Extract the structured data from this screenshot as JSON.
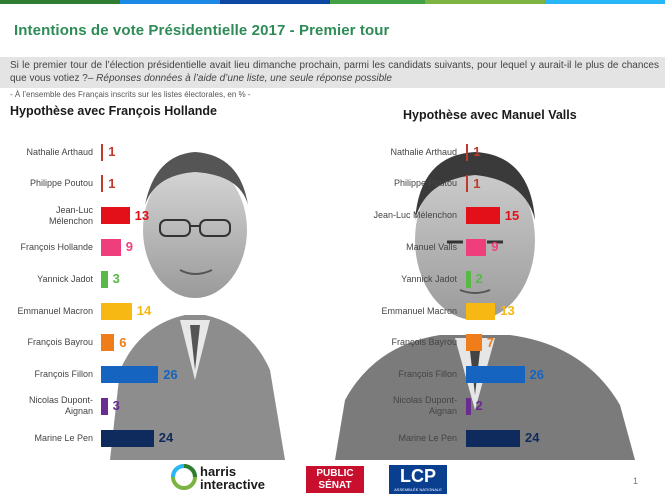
{
  "title": "Intentions de vote Présidentielle 2017 - Premier tour",
  "question": {
    "text": "Si le premier tour de l’élection présidentielle avait lieu dimanche prochain, parmi les candidats suivants, pour lequel y aurait-il le plus de chances que vous votiez ?–",
    "italic": "Réponses données à l’aide d’une liste, une seule réponse possible"
  },
  "scope": "- À l’ensemble des Français inscrits sur les listes électorales, en % -",
  "colors": {
    "arthaud": "#c0392b",
    "poutou": "#c0392b",
    "melenchon": "#e3101a",
    "hollande": "#ee3f7c",
    "valls": "#ee3f7c",
    "jadot": "#58b947",
    "macron": "#f7b813",
    "bayrou": "#ef7d1a",
    "fillon": "#1565c0",
    "dupont": "#6a2c91",
    "lepen": "#0f2a5c"
  },
  "chart_data": [
    {
      "type": "bar",
      "title": "Hypothèse avec François Hollande",
      "categories": [
        "Nathalie Arthaud",
        "Philippe Poutou",
        "Jean-Luc Mélenchon",
        "François Hollande",
        "Yannick Jadot",
        "Emmanuel Macron",
        "François Bayrou",
        "François Fillon",
        "Nicolas Dupont-Aignan",
        "Marine Le Pen"
      ],
      "values": [
        1,
        1,
        13,
        9,
        3,
        14,
        6,
        26,
        3,
        24
      ],
      "labels": [
        "Nathalie Arthaud",
        "Philippe Poutou",
        "Jean-Luc\nMélenchon",
        "François Hollande",
        "Yannick Jadot",
        "Emmanuel Macron",
        "François Bayrou",
        "François Fillon",
        "Nicolas Dupont-\nAignan",
        "Marine Le Pen"
      ],
      "keys": [
        "arthaud",
        "poutou",
        "melenchon",
        "hollande",
        "jadot",
        "macron",
        "bayrou",
        "fillon",
        "dupont",
        "lepen"
      ],
      "orientation": "horizontal"
    },
    {
      "type": "bar",
      "title": "Hypothèse avec Manuel Valls",
      "categories": [
        "Nathalie Arthaud",
        "Philippe Poutou",
        "Jean-Luc Mélenchon",
        "Manuel Valls",
        "Yannick Jadot",
        "Emmanuel Macron",
        "François Bayrou",
        "François Fillon",
        "Nicolas Dupont-Aignan",
        "Marine Le Pen"
      ],
      "values": [
        1,
        1,
        15,
        9,
        2,
        13,
        7,
        26,
        2,
        24
      ],
      "labels": [
        "Nathalie Arthaud",
        "Philippe Poutou",
        "Jean-Luc Mélenchon",
        "Manuel Valls",
        "Yannick Jadot",
        "Emmanuel Macron",
        "François Bayrou",
        "François Fillon",
        "Nicolas Dupont-\nAignan",
        "Marine Le Pen"
      ],
      "keys": [
        "arthaud",
        "poutou",
        "melenchon",
        "valls",
        "jadot",
        "macron",
        "bayrou",
        "fillon",
        "dupont",
        "lepen"
      ],
      "orientation": "horizontal"
    }
  ],
  "footer": {
    "harris": "harris\ninteractive",
    "public_senat": "PUBLIC\nSÉNAT",
    "lcp": "LCP",
    "lcp_sub": "ASSEMBLÉE NATIONALE",
    "page": "1"
  }
}
